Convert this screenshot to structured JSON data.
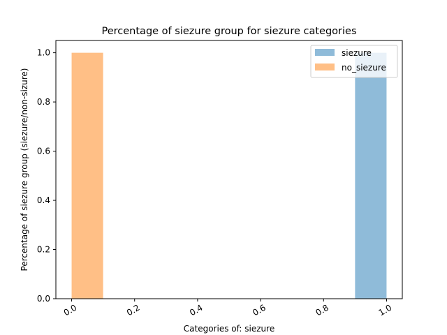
{
  "chart_data": {
    "type": "bar",
    "title": "Percentage of siezure group for siezure categories",
    "xlabel": "Categories of: siezure",
    "ylabel": "Percentage of siezure group (siezure/non-sizure)",
    "xlim": [
      -0.05,
      1.05
    ],
    "ylim": [
      0,
      1.05
    ],
    "xticks": [
      "0.0",
      "0.2",
      "0.4",
      "0.6",
      "0.8",
      "1.0"
    ],
    "xtick_values": [
      0.0,
      0.2,
      0.4,
      0.6,
      0.8,
      1.0
    ],
    "yticks": [
      "0.0",
      "0.2",
      "0.4",
      "0.6",
      "0.8",
      "1.0"
    ],
    "ytick_values": [
      0.0,
      0.2,
      0.4,
      0.6,
      0.8,
      1.0
    ],
    "grid": false,
    "legend_position": "top-right",
    "series": [
      {
        "name": "siezure",
        "color": "#8fbbd9",
        "bins": [
          {
            "x0": 0.9,
            "x1": 1.0,
            "value": 1.0
          }
        ]
      },
      {
        "name": "no_siezure",
        "color": "#ffbf86",
        "bins": [
          {
            "x0": 0.0,
            "x1": 0.1,
            "value": 1.0
          }
        ]
      }
    ]
  }
}
